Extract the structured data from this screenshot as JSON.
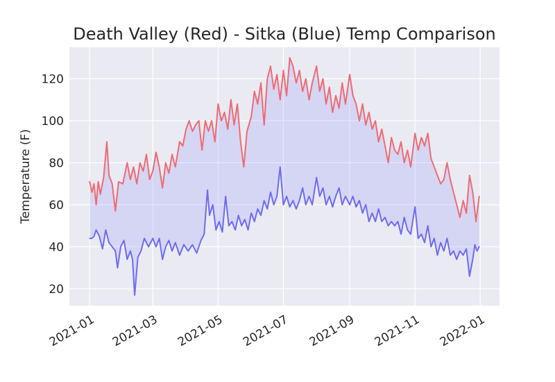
{
  "chart_data": {
    "type": "line",
    "title": "Death Valley (Red) - Sitka (Blue) Temp Comparison",
    "xlabel": "",
    "ylabel": "Temperature (F)",
    "x_ticks": [
      "2021-01",
      "2021-03",
      "2021-05",
      "2021-07",
      "2021-09",
      "2021-11",
      "2022-01"
    ],
    "y_ticks": [
      20,
      40,
      60,
      80,
      100,
      120
    ],
    "xlim": [
      "2020-12-13",
      "2022-01-19"
    ],
    "ylim": [
      12,
      135
    ],
    "grid": true,
    "fill_between": true,
    "fill_color": "#8080ff",
    "fill_alpha": 0.2,
    "background_color": "#eaeaf2",
    "series": [
      {
        "color": "#ee6b73",
        "points": [
          [
            "2021-01-01",
            71
          ],
          [
            "2021-01-03",
            66
          ],
          [
            "2021-01-05",
            70
          ],
          [
            "2021-01-07",
            60
          ],
          [
            "2021-01-09",
            71
          ],
          [
            "2021-01-11",
            65
          ],
          [
            "2021-01-14",
            73
          ],
          [
            "2021-01-17",
            90
          ],
          [
            "2021-01-19",
            74
          ],
          [
            "2021-01-22",
            70
          ],
          [
            "2021-01-25",
            57
          ],
          [
            "2021-01-28",
            71
          ],
          [
            "2021-02-01",
            70
          ],
          [
            "2021-02-05",
            80
          ],
          [
            "2021-02-08",
            72
          ],
          [
            "2021-02-11",
            78
          ],
          [
            "2021-02-14",
            70
          ],
          [
            "2021-02-17",
            80
          ],
          [
            "2021-02-20",
            76
          ],
          [
            "2021-02-23",
            84
          ],
          [
            "2021-02-26",
            72
          ],
          [
            "2021-03-01",
            76
          ],
          [
            "2021-03-04",
            85
          ],
          [
            "2021-03-07",
            78
          ],
          [
            "2021-03-10",
            68
          ],
          [
            "2021-03-13",
            80
          ],
          [
            "2021-03-16",
            75
          ],
          [
            "2021-03-19",
            84
          ],
          [
            "2021-03-22",
            78
          ],
          [
            "2021-03-26",
            90
          ],
          [
            "2021-03-29",
            88
          ],
          [
            "2021-04-01",
            96
          ],
          [
            "2021-04-04",
            100
          ],
          [
            "2021-04-07",
            95
          ],
          [
            "2021-04-10",
            98
          ],
          [
            "2021-04-13",
            100
          ],
          [
            "2021-04-16",
            86
          ],
          [
            "2021-04-19",
            100
          ],
          [
            "2021-04-22",
            95
          ],
          [
            "2021-04-25",
            100
          ],
          [
            "2021-04-28",
            90
          ],
          [
            "2021-05-01",
            108
          ],
          [
            "2021-05-04",
            100
          ],
          [
            "2021-05-07",
            104
          ],
          [
            "2021-05-10",
            96
          ],
          [
            "2021-05-13",
            110
          ],
          [
            "2021-05-16",
            98
          ],
          [
            "2021-05-19",
            108
          ],
          [
            "2021-05-22",
            90
          ],
          [
            "2021-05-25",
            78
          ],
          [
            "2021-05-28",
            95
          ],
          [
            "2021-06-01",
            102
          ],
          [
            "2021-06-04",
            114
          ],
          [
            "2021-06-07",
            108
          ],
          [
            "2021-06-10",
            118
          ],
          [
            "2021-06-13",
            98
          ],
          [
            "2021-06-16",
            120
          ],
          [
            "2021-06-19",
            126
          ],
          [
            "2021-06-22",
            115
          ],
          [
            "2021-06-25",
            122
          ],
          [
            "2021-06-28",
            110
          ],
          [
            "2021-07-01",
            124
          ],
          [
            "2021-07-04",
            112
          ],
          [
            "2021-07-07",
            130
          ],
          [
            "2021-07-10",
            126
          ],
          [
            "2021-07-13",
            118
          ],
          [
            "2021-07-16",
            124
          ],
          [
            "2021-07-19",
            114
          ],
          [
            "2021-07-22",
            120
          ],
          [
            "2021-07-25",
            110
          ],
          [
            "2021-07-28",
            118
          ],
          [
            "2021-08-01",
            126
          ],
          [
            "2021-08-04",
            114
          ],
          [
            "2021-08-07",
            120
          ],
          [
            "2021-08-10",
            108
          ],
          [
            "2021-08-13",
            116
          ],
          [
            "2021-08-16",
            104
          ],
          [
            "2021-08-19",
            112
          ],
          [
            "2021-08-22",
            106
          ],
          [
            "2021-08-25",
            118
          ],
          [
            "2021-08-28",
            108
          ],
          [
            "2021-09-01",
            122
          ],
          [
            "2021-09-04",
            112
          ],
          [
            "2021-09-07",
            108
          ],
          [
            "2021-09-10",
            100
          ],
          [
            "2021-09-13",
            108
          ],
          [
            "2021-09-16",
            98
          ],
          [
            "2021-09-19",
            104
          ],
          [
            "2021-09-22",
            96
          ],
          [
            "2021-09-25",
            100
          ],
          [
            "2021-09-28",
            90
          ],
          [
            "2021-10-01",
            96
          ],
          [
            "2021-10-04",
            88
          ],
          [
            "2021-10-07",
            80
          ],
          [
            "2021-10-10",
            92
          ],
          [
            "2021-10-13",
            86
          ],
          [
            "2021-10-16",
            84
          ],
          [
            "2021-10-19",
            90
          ],
          [
            "2021-10-22",
            80
          ],
          [
            "2021-10-25",
            86
          ],
          [
            "2021-10-28",
            78
          ],
          [
            "2021-11-01",
            94
          ],
          [
            "2021-11-04",
            86
          ],
          [
            "2021-11-07",
            92
          ],
          [
            "2021-11-10",
            88
          ],
          [
            "2021-11-13",
            94
          ],
          [
            "2021-11-16",
            82
          ],
          [
            "2021-11-19",
            78
          ],
          [
            "2021-11-22",
            74
          ],
          [
            "2021-11-25",
            70
          ],
          [
            "2021-11-28",
            72
          ],
          [
            "2021-12-01",
            80
          ],
          [
            "2021-12-04",
            72
          ],
          [
            "2021-12-07",
            66
          ],
          [
            "2021-12-10",
            60
          ],
          [
            "2021-12-13",
            54
          ],
          [
            "2021-12-16",
            62
          ],
          [
            "2021-12-19",
            56
          ],
          [
            "2021-12-22",
            74
          ],
          [
            "2021-12-25",
            66
          ],
          [
            "2021-12-28",
            52
          ],
          [
            "2021-12-31",
            64
          ]
        ]
      },
      {
        "color": "#6d6cef",
        "points": [
          [
            "2021-01-01",
            44
          ],
          [
            "2021-01-03",
            44
          ],
          [
            "2021-01-05",
            45
          ],
          [
            "2021-01-07",
            48
          ],
          [
            "2021-01-10",
            45
          ],
          [
            "2021-01-13",
            39
          ],
          [
            "2021-01-16",
            48
          ],
          [
            "2021-01-19",
            42
          ],
          [
            "2021-01-22",
            40
          ],
          [
            "2021-01-25",
            38
          ],
          [
            "2021-01-27",
            30
          ],
          [
            "2021-01-30",
            40
          ],
          [
            "2021-02-02",
            43
          ],
          [
            "2021-02-05",
            34
          ],
          [
            "2021-02-08",
            38
          ],
          [
            "2021-02-10",
            34
          ],
          [
            "2021-02-12",
            17
          ],
          [
            "2021-02-15",
            35
          ],
          [
            "2021-02-18",
            38
          ],
          [
            "2021-02-21",
            44
          ],
          [
            "2021-02-25",
            40
          ],
          [
            "2021-03-01",
            44
          ],
          [
            "2021-03-04",
            40
          ],
          [
            "2021-03-07",
            44
          ],
          [
            "2021-03-10",
            34
          ],
          [
            "2021-03-13",
            40
          ],
          [
            "2021-03-16",
            43
          ],
          [
            "2021-03-19",
            38
          ],
          [
            "2021-03-22",
            42
          ],
          [
            "2021-03-26",
            36
          ],
          [
            "2021-03-30",
            41
          ],
          [
            "2021-04-03",
            38
          ],
          [
            "2021-04-07",
            41
          ],
          [
            "2021-04-11",
            37
          ],
          [
            "2021-04-15",
            43
          ],
          [
            "2021-04-18",
            46
          ],
          [
            "2021-04-21",
            67
          ],
          [
            "2021-04-23",
            55
          ],
          [
            "2021-04-26",
            60
          ],
          [
            "2021-04-29",
            48
          ],
          [
            "2021-05-02",
            52
          ],
          [
            "2021-05-05",
            47
          ],
          [
            "2021-05-08",
            64
          ],
          [
            "2021-05-11",
            50
          ],
          [
            "2021-05-14",
            52
          ],
          [
            "2021-05-17",
            48
          ],
          [
            "2021-05-20",
            55
          ],
          [
            "2021-05-23",
            50
          ],
          [
            "2021-05-26",
            53
          ],
          [
            "2021-05-29",
            48
          ],
          [
            "2021-06-01",
            56
          ],
          [
            "2021-06-04",
            52
          ],
          [
            "2021-06-07",
            58
          ],
          [
            "2021-06-10",
            55
          ],
          [
            "2021-06-13",
            62
          ],
          [
            "2021-06-16",
            58
          ],
          [
            "2021-06-19",
            66
          ],
          [
            "2021-06-22",
            60
          ],
          [
            "2021-06-25",
            64
          ],
          [
            "2021-06-28",
            78
          ],
          [
            "2021-07-01",
            60
          ],
          [
            "2021-07-04",
            64
          ],
          [
            "2021-07-07",
            59
          ],
          [
            "2021-07-10",
            62
          ],
          [
            "2021-07-13",
            58
          ],
          [
            "2021-07-16",
            62
          ],
          [
            "2021-07-19",
            68
          ],
          [
            "2021-07-22",
            60
          ],
          [
            "2021-07-25",
            64
          ],
          [
            "2021-07-28",
            60
          ],
          [
            "2021-08-01",
            73
          ],
          [
            "2021-08-04",
            64
          ],
          [
            "2021-08-07",
            68
          ],
          [
            "2021-08-10",
            60
          ],
          [
            "2021-08-13",
            64
          ],
          [
            "2021-08-16",
            59
          ],
          [
            "2021-08-19",
            64
          ],
          [
            "2021-08-22",
            68
          ],
          [
            "2021-08-25",
            60
          ],
          [
            "2021-08-28",
            64
          ],
          [
            "2021-09-01",
            60
          ],
          [
            "2021-09-04",
            64
          ],
          [
            "2021-09-07",
            59
          ],
          [
            "2021-09-10",
            62
          ],
          [
            "2021-09-13",
            56
          ],
          [
            "2021-09-16",
            60
          ],
          [
            "2021-09-19",
            52
          ],
          [
            "2021-09-22",
            56
          ],
          [
            "2021-09-25",
            52
          ],
          [
            "2021-09-28",
            58
          ],
          [
            "2021-10-01",
            52
          ],
          [
            "2021-10-04",
            54
          ],
          [
            "2021-10-07",
            50
          ],
          [
            "2021-10-10",
            52
          ],
          [
            "2021-10-13",
            50
          ],
          [
            "2021-10-16",
            52
          ],
          [
            "2021-10-19",
            46
          ],
          [
            "2021-10-22",
            54
          ],
          [
            "2021-10-25",
            48
          ],
          [
            "2021-10-28",
            46
          ],
          [
            "2021-11-01",
            59
          ],
          [
            "2021-11-04",
            44
          ],
          [
            "2021-11-07",
            46
          ],
          [
            "2021-11-10",
            42
          ],
          [
            "2021-11-13",
            50
          ],
          [
            "2021-11-16",
            40
          ],
          [
            "2021-11-19",
            44
          ],
          [
            "2021-11-22",
            36
          ],
          [
            "2021-11-25",
            42
          ],
          [
            "2021-11-28",
            38
          ],
          [
            "2021-12-01",
            44
          ],
          [
            "2021-12-04",
            36
          ],
          [
            "2021-12-07",
            38
          ],
          [
            "2021-12-10",
            34
          ],
          [
            "2021-12-13",
            38
          ],
          [
            "2021-12-16",
            36
          ],
          [
            "2021-12-19",
            39
          ],
          [
            "2021-12-22",
            26
          ],
          [
            "2021-12-25",
            34
          ],
          [
            "2021-12-27",
            41
          ],
          [
            "2021-12-29",
            38
          ],
          [
            "2021-12-31",
            40
          ]
        ]
      }
    ]
  }
}
